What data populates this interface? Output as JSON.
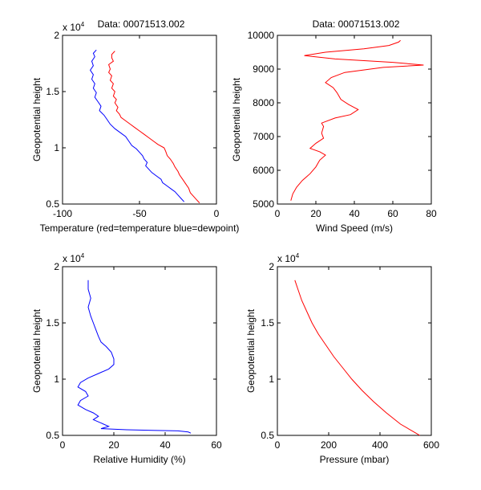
{
  "chart_data": [
    {
      "type": "line",
      "title": "Data: 00071513.002",
      "xlabel": "Temperature (red=temperature blue=dewpoint)",
      "ylabel": "Geopotential height",
      "exponent": "x 10",
      "exponent_power": "4",
      "xlim": [
        -100,
        0
      ],
      "ylim": [
        0.5,
        2
      ],
      "xticks": [
        -100,
        -50,
        0
      ],
      "yticks": [
        0.5,
        1,
        1.5,
        2
      ],
      "series": [
        {
          "color": "#ff0000",
          "points": [
            [
              -66,
              1.86
            ],
            [
              -68,
              1.83
            ],
            [
              -68,
              1.8
            ],
            [
              -67,
              1.77
            ],
            [
              -70,
              1.74
            ],
            [
              -69,
              1.7
            ],
            [
              -70,
              1.67
            ],
            [
              -68,
              1.64
            ],
            [
              -69,
              1.6
            ],
            [
              -67,
              1.57
            ],
            [
              -68,
              1.53
            ],
            [
              -66,
              1.5
            ],
            [
              -67,
              1.46
            ],
            [
              -65,
              1.43
            ],
            [
              -66,
              1.4
            ],
            [
              -64,
              1.36
            ],
            [
              -65,
              1.33
            ],
            [
              -63,
              1.3
            ],
            [
              -62,
              1.27
            ],
            [
              -59,
              1.24
            ],
            [
              -56,
              1.21
            ],
            [
              -53,
              1.18
            ],
            [
              -50,
              1.15
            ],
            [
              -47,
              1.12
            ],
            [
              -44,
              1.09
            ],
            [
              -41,
              1.06
            ],
            [
              -38,
              1.03
            ],
            [
              -34,
              1.0
            ],
            [
              -33,
              0.97
            ],
            [
              -32,
              0.93
            ],
            [
              -30,
              0.9
            ],
            [
              -28,
              0.86
            ],
            [
              -27,
              0.83
            ],
            [
              -25,
              0.79
            ],
            [
              -24,
              0.76
            ],
            [
              -22,
              0.72
            ],
            [
              -20,
              0.68
            ],
            [
              -18,
              0.64
            ],
            [
              -17,
              0.6
            ],
            [
              -15,
              0.57
            ],
            [
              -13,
              0.54
            ],
            [
              -11,
              0.51
            ]
          ]
        },
        {
          "color": "#0000ff",
          "points": [
            [
              -78,
              1.87
            ],
            [
              -80,
              1.84
            ],
            [
              -79,
              1.81
            ],
            [
              -81,
              1.77
            ],
            [
              -80,
              1.73
            ],
            [
              -82,
              1.69
            ],
            [
              -80,
              1.65
            ],
            [
              -81,
              1.61
            ],
            [
              -79,
              1.57
            ],
            [
              -80,
              1.53
            ],
            [
              -78,
              1.49
            ],
            [
              -79,
              1.45
            ],
            [
              -77,
              1.41
            ],
            [
              -75,
              1.37
            ],
            [
              -76,
              1.33
            ],
            [
              -73,
              1.29
            ],
            [
              -71,
              1.25
            ],
            [
              -69,
              1.21
            ],
            [
              -66,
              1.17
            ],
            [
              -62,
              1.13
            ],
            [
              -59,
              1.1
            ],
            [
              -57,
              1.06
            ],
            [
              -55,
              1.02
            ],
            [
              -52,
              0.99
            ],
            [
              -50,
              0.96
            ],
            [
              -48,
              0.93
            ],
            [
              -47,
              0.9
            ],
            [
              -45,
              0.87
            ],
            [
              -46,
              0.84
            ],
            [
              -44,
              0.81
            ],
            [
              -42,
              0.78
            ],
            [
              -39,
              0.75
            ],
            [
              -36,
              0.72
            ],
            [
              -35,
              0.69
            ],
            [
              -32,
              0.66
            ],
            [
              -29,
              0.63
            ],
            [
              -27,
              0.61
            ],
            [
              -25,
              0.58
            ],
            [
              -23,
              0.55
            ],
            [
              -21,
              0.52
            ]
          ]
        }
      ]
    },
    {
      "type": "line",
      "title": "Data: 00071513.002",
      "xlabel": "Wind Speed (m/s)",
      "ylabel": "Geopotential height",
      "xlim": [
        0,
        80
      ],
      "ylim": [
        5000,
        10000
      ],
      "xticks": [
        0,
        20,
        40,
        60,
        80
      ],
      "yticks": [
        5000,
        6000,
        7000,
        8000,
        9000,
        10000
      ],
      "series": [
        {
          "color": "#ff0000",
          "points": [
            [
              7,
              5100
            ],
            [
              8,
              5300
            ],
            [
              10,
              5500
            ],
            [
              13,
              5700
            ],
            [
              17,
              5900
            ],
            [
              20,
              6100
            ],
            [
              22,
              6300
            ],
            [
              25,
              6450
            ],
            [
              22,
              6550
            ],
            [
              17,
              6650
            ],
            [
              20,
              6800
            ],
            [
              24,
              6950
            ],
            [
              23,
              7100
            ],
            [
              24,
              7300
            ],
            [
              23,
              7400
            ],
            [
              30,
              7550
            ],
            [
              38,
              7650
            ],
            [
              42,
              7800
            ],
            [
              37,
              7950
            ],
            [
              33,
              8100
            ],
            [
              31,
              8300
            ],
            [
              29,
              8450
            ],
            [
              25,
              8600
            ],
            [
              28,
              8750
            ],
            [
              35,
              8900
            ],
            [
              55,
              9050
            ],
            [
              76,
              9120
            ],
            [
              60,
              9200
            ],
            [
              30,
              9300
            ],
            [
              14,
              9400
            ],
            [
              25,
              9500
            ],
            [
              45,
              9600
            ],
            [
              58,
              9700
            ],
            [
              63,
              9800
            ],
            [
              64,
              9850
            ]
          ]
        }
      ]
    },
    {
      "type": "line",
      "title": "",
      "xlabel": "Relative Humidity (%)",
      "ylabel": "Geopotential height",
      "exponent": "x 10",
      "exponent_power": "4",
      "xlim": [
        0,
        60
      ],
      "ylim": [
        0.5,
        2
      ],
      "xticks": [
        0,
        20,
        40,
        60
      ],
      "yticks": [
        0.5,
        1,
        1.5,
        2
      ],
      "series": [
        {
          "color": "#0000ff",
          "points": [
            [
              10,
              1.88
            ],
            [
              10,
              1.8
            ],
            [
              11,
              1.72
            ],
            [
              10,
              1.64
            ],
            [
              11,
              1.56
            ],
            [
              12,
              1.5
            ],
            [
              13,
              1.44
            ],
            [
              14,
              1.38
            ],
            [
              15,
              1.33
            ],
            [
              17,
              1.29
            ],
            [
              19,
              1.24
            ],
            [
              20,
              1.18
            ],
            [
              20,
              1.13
            ],
            [
              18,
              1.09
            ],
            [
              14,
              1.05
            ],
            [
              10,
              1.01
            ],
            [
              7,
              0.97
            ],
            [
              6,
              0.93
            ],
            [
              9,
              0.89
            ],
            [
              10,
              0.85
            ],
            [
              7,
              0.81
            ],
            [
              6,
              0.77
            ],
            [
              9,
              0.73
            ],
            [
              12,
              0.7
            ],
            [
              14,
              0.67
            ],
            [
              12,
              0.64
            ],
            [
              15,
              0.61
            ],
            [
              18,
              0.58
            ],
            [
              15,
              0.56
            ],
            [
              25,
              0.55
            ],
            [
              35,
              0.545
            ],
            [
              45,
              0.54
            ],
            [
              49,
              0.53
            ],
            [
              50,
              0.52
            ]
          ]
        }
      ]
    },
    {
      "type": "line",
      "title": "",
      "xlabel": "Pressure (mbar)",
      "ylabel": "Geopotential height",
      "exponent": "x 10",
      "exponent_power": "4",
      "xlim": [
        0,
        600
      ],
      "ylim": [
        0.5,
        2
      ],
      "xticks": [
        0,
        200,
        400,
        600
      ],
      "yticks": [
        0.5,
        1,
        1.5,
        2
      ],
      "series": [
        {
          "color": "#ff0000",
          "points": [
            [
              68,
              1.88
            ],
            [
              80,
              1.8
            ],
            [
              95,
              1.7
            ],
            [
              115,
              1.6
            ],
            [
              135,
              1.5
            ],
            [
              160,
              1.4
            ],
            [
              190,
              1.3
            ],
            [
              220,
              1.2
            ],
            [
              255,
              1.1
            ],
            [
              290,
              1.0
            ],
            [
              330,
              0.9
            ],
            [
              375,
              0.8
            ],
            [
              425,
              0.7
            ],
            [
              480,
              0.6
            ],
            [
              540,
              0.52
            ],
            [
              555,
              0.5
            ]
          ]
        }
      ]
    }
  ]
}
